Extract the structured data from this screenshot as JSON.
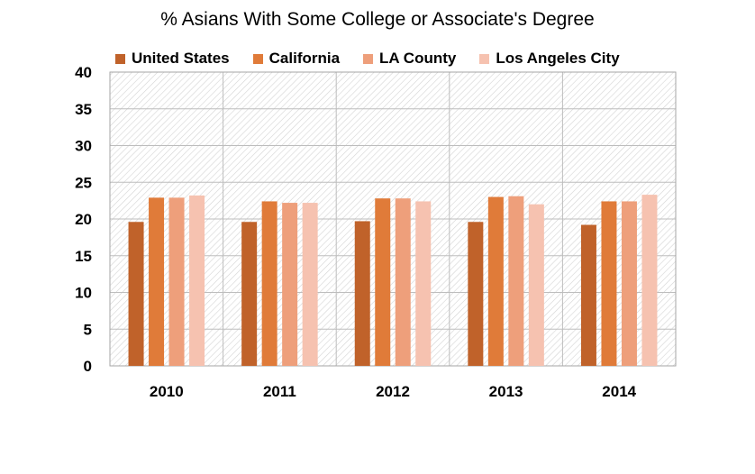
{
  "chart_data": {
    "type": "bar",
    "title": "% Asians With Some College or Associate's Degree",
    "categories": [
      "2010",
      "2011",
      "2012",
      "2013",
      "2014"
    ],
    "series": [
      {
        "name": "United States",
        "color": "#c0622a",
        "values": [
          19.6,
          19.6,
          19.7,
          19.6,
          19.2
        ]
      },
      {
        "name": "California",
        "color": "#e07b39",
        "values": [
          22.9,
          22.4,
          22.8,
          23.0,
          22.4
        ]
      },
      {
        "name": "LA County",
        "color": "#ee9f7b",
        "values": [
          22.9,
          22.2,
          22.8,
          23.1,
          22.4
        ]
      },
      {
        "name": "Los Angeles City",
        "color": "#f6c2b0",
        "values": [
          23.2,
          22.2,
          22.4,
          22.0,
          23.3
        ]
      }
    ],
    "ylim": [
      0,
      40
    ],
    "yticks": [
      0,
      5,
      10,
      15,
      20,
      25,
      30,
      35,
      40
    ],
    "xlabel": "",
    "ylabel": "",
    "grid": true,
    "legend_position": "top"
  }
}
